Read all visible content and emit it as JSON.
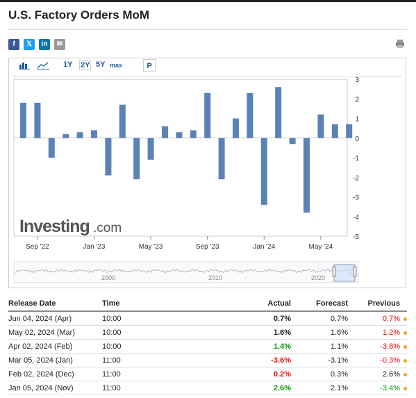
{
  "title": "U.S. Factory Orders MoM",
  "share": [
    {
      "name": "facebook-share-button",
      "glyph": "f",
      "color": "#3b5998"
    },
    {
      "name": "twitter-share-button",
      "glyph": "𝕏",
      "color": "#1da1f2"
    },
    {
      "name": "linkedin-share-button",
      "glyph": "in",
      "color": "#0e76a8"
    },
    {
      "name": "email-share-button",
      "glyph": "✉",
      "color": "#999999"
    }
  ],
  "toolbar": {
    "range_1y": "1Y",
    "range_2y": "2Y",
    "range_5y": "5Y",
    "range_max": "max",
    "p_label": "P"
  },
  "watermark": {
    "brand": "Investing",
    "suffix": ".com"
  },
  "chart_data": {
    "type": "bar",
    "x_tick_labels": [
      "Sep '22",
      "Jan '23",
      "May '23",
      "Sep '23",
      "Jan '24",
      "May '24"
    ],
    "values": [
      1.8,
      1.8,
      -1.0,
      0.2,
      0.3,
      0.4,
      -1.9,
      1.7,
      -2.1,
      -1.1,
      0.6,
      0.3,
      0.4,
      2.3,
      -2.1,
      1.0,
      2.3,
      -3.4,
      2.6,
      -0.3,
      -3.8,
      1.2,
      0.7,
      0.7
    ],
    "ylim": [
      -5,
      3
    ],
    "y_ticks": [
      3,
      2,
      1,
      0,
      -1,
      -2,
      -3,
      -4,
      -5
    ],
    "bar_color": "#5b82b5"
  },
  "navigator": {
    "labels": [
      "2000",
      "2010",
      "2020"
    ]
  },
  "table": {
    "headers": {
      "date": "Release Date",
      "time": "Time",
      "actual": "Actual",
      "forecast": "Forecast",
      "previous": "Previous"
    },
    "rows": [
      {
        "date": "Jun 04, 2024 (Apr)",
        "time": "10:00",
        "actual": "0.7%",
        "forecast": "0.7%",
        "previous": "0.7%",
        "actual_color": "black",
        "previous_color": "red"
      },
      {
        "date": "May 02, 2024 (Mar)",
        "time": "10:00",
        "actual": "1.6%",
        "forecast": "1.6%",
        "previous": "1.2%",
        "actual_color": "black",
        "previous_color": "red"
      },
      {
        "date": "Apr 02, 2024 (Feb)",
        "time": "10:00",
        "actual": "1.4%",
        "forecast": "1.1%",
        "previous": "-3.8%",
        "actual_color": "green",
        "previous_color": "red"
      },
      {
        "date": "Mar 05, 2024 (Jan)",
        "time": "11:00",
        "actual": "-3.6%",
        "forecast": "-3.1%",
        "previous": "-0.3%",
        "actual_color": "red",
        "previous_color": "red"
      },
      {
        "date": "Feb 02, 2024 (Dec)",
        "time": "11:00",
        "actual": "0.2%",
        "forecast": "0.3%",
        "previous": "2.6%",
        "actual_color": "red",
        "previous_color": "black"
      },
      {
        "date": "Jan 05, 2024 (Nov)",
        "time": "11:00",
        "actual": "2.6%",
        "forecast": "2.1%",
        "previous": "-3.4%",
        "actual_color": "green",
        "previous_color": "green"
      }
    ]
  }
}
